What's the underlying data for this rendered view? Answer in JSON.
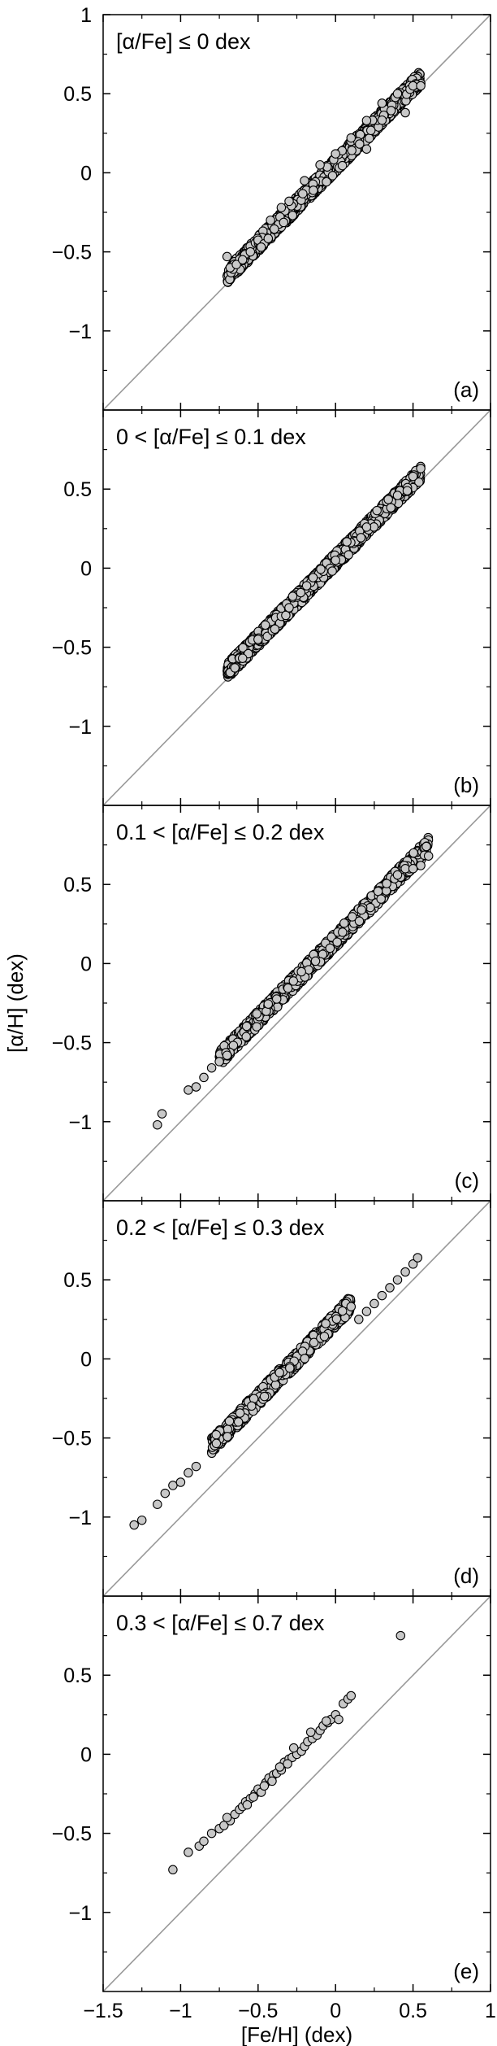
{
  "chart_data": {
    "type": "scatter",
    "xlabel": "[Fe/H] (dex)",
    "ylabel": "[α/H] (dex)",
    "xlim": [
      -1.5,
      1.0
    ],
    "ylim": [
      -1.5,
      1.0
    ],
    "x_ticks": [
      -1.5,
      -1,
      -0.5,
      0,
      0.5,
      1
    ],
    "x_tick_labels": [
      "−1.5",
      "−1",
      "−0.5",
      "0",
      "0.5",
      "1"
    ],
    "y_ticks": [
      -1,
      -0.5,
      0,
      0.5,
      1
    ],
    "y_tick_labels": [
      "−1",
      "−0.5",
      "0",
      "0.5",
      "1"
    ],
    "reference_line": "y = x",
    "marker": "circle",
    "marker_fill": "#c8c8c8",
    "marker_edge": "#000000",
    "line_color": "#999999",
    "panels": [
      {
        "title": "[α/Fe] ≤ 0 dex",
        "label": "(a)",
        "show_top_tick": true,
        "band": {
          "x_range": [
            -0.7,
            0.55
          ],
          "offset_range": [
            0.0,
            0.1
          ],
          "density": "very high"
        },
        "points": [
          [
            -0.7,
            -0.53
          ],
          [
            -0.68,
            -0.6
          ],
          [
            -0.64,
            -0.58
          ],
          [
            -0.6,
            -0.55
          ],
          [
            -0.55,
            -0.5
          ],
          [
            -0.48,
            -0.47
          ],
          [
            -0.42,
            -0.3
          ],
          [
            -0.35,
            -0.22
          ],
          [
            -0.3,
            -0.18
          ],
          [
            -0.2,
            -0.05
          ],
          [
            -0.1,
            0.05
          ],
          [
            0.0,
            0.12
          ],
          [
            0.1,
            0.22
          ],
          [
            0.2,
            0.33
          ],
          [
            0.3,
            0.44
          ],
          [
            0.4,
            0.5
          ],
          [
            0.5,
            0.55
          ],
          [
            0.55,
            0.55
          ],
          [
            0.45,
            0.38
          ],
          [
            0.2,
            0.15
          ]
        ]
      },
      {
        "title": "0 < [α/Fe] ≤ 0.1 dex",
        "label": "(b)",
        "show_top_tick": false,
        "band": {
          "x_range": [
            -0.7,
            0.55
          ],
          "offset_range": [
            0.0,
            0.1
          ],
          "density": "very high"
        },
        "points": [
          [
            -0.68,
            -0.66
          ],
          [
            -0.65,
            -0.63
          ],
          [
            -0.6,
            -0.57
          ],
          [
            -0.5,
            -0.45
          ],
          [
            -0.3,
            -0.25
          ],
          [
            0.0,
            0.05
          ],
          [
            0.2,
            0.26
          ],
          [
            0.4,
            0.46
          ],
          [
            0.5,
            0.58
          ],
          [
            0.55,
            0.63
          ]
        ]
      },
      {
        "title": "0.1 < [α/Fe] ≤ 0.2 dex",
        "label": "(c)",
        "show_top_tick": false,
        "band": {
          "x_range": [
            -0.75,
            0.6
          ],
          "offset_range": [
            0.1,
            0.2
          ],
          "density": "high"
        },
        "points": [
          [
            -1.15,
            -1.02
          ],
          [
            -1.12,
            -0.95
          ],
          [
            -0.95,
            -0.8
          ],
          [
            -0.9,
            -0.78
          ],
          [
            -0.85,
            -0.72
          ],
          [
            -0.8,
            -0.66
          ],
          [
            -0.75,
            -0.62
          ],
          [
            -0.7,
            -0.58
          ],
          [
            0.4,
            0.56
          ],
          [
            0.45,
            0.6
          ],
          [
            0.5,
            0.6
          ],
          [
            0.55,
            0.62
          ],
          [
            0.6,
            0.68
          ]
        ]
      },
      {
        "title": "0.2 < [α/Fe] ≤ 0.3 dex",
        "label": "(d)",
        "show_top_tick": false,
        "band": {
          "x_range": [
            -0.8,
            0.1
          ],
          "offset_range": [
            0.2,
            0.3
          ],
          "density": "medium"
        },
        "points": [
          [
            -1.3,
            -1.05
          ],
          [
            -1.25,
            -1.02
          ],
          [
            -1.15,
            -0.92
          ],
          [
            -1.1,
            -0.85
          ],
          [
            -1.05,
            -0.8
          ],
          [
            -1.0,
            -0.78
          ],
          [
            -0.95,
            -0.72
          ],
          [
            -0.9,
            -0.68
          ],
          [
            0.1,
            0.33
          ],
          [
            0.15,
            0.25
          ],
          [
            0.2,
            0.3
          ],
          [
            0.25,
            0.35
          ],
          [
            0.3,
            0.4
          ],
          [
            0.35,
            0.45
          ],
          [
            0.4,
            0.5
          ],
          [
            0.45,
            0.55
          ],
          [
            0.5,
            0.6
          ],
          [
            0.53,
            0.64
          ]
        ]
      },
      {
        "title": "0.3 < [α/Fe] ≤ 0.7 dex",
        "label": "(e)",
        "show_top_tick": false,
        "points": [
          [
            -1.05,
            -0.73
          ],
          [
            -0.95,
            -0.62
          ],
          [
            -0.88,
            -0.58
          ],
          [
            -0.85,
            -0.55
          ],
          [
            -0.8,
            -0.5
          ],
          [
            -0.75,
            -0.47
          ],
          [
            -0.72,
            -0.45
          ],
          [
            -0.68,
            -0.42
          ],
          [
            -0.65,
            -0.38
          ],
          [
            -0.62,
            -0.35
          ],
          [
            -0.6,
            -0.33
          ],
          [
            -0.58,
            -0.3
          ],
          [
            -0.55,
            -0.28
          ],
          [
            -0.52,
            -0.25
          ],
          [
            -0.5,
            -0.22
          ],
          [
            -0.48,
            -0.24
          ],
          [
            -0.45,
            -0.18
          ],
          [
            -0.43,
            -0.15
          ],
          [
            -0.4,
            -0.13
          ],
          [
            -0.38,
            -0.12
          ],
          [
            -0.35,
            -0.1
          ],
          [
            -0.33,
            -0.05
          ],
          [
            -0.3,
            -0.03
          ],
          [
            -0.28,
            -0.02
          ],
          [
            -0.25,
            0.0
          ],
          [
            -0.22,
            0.02
          ],
          [
            -0.2,
            0.05
          ],
          [
            -0.18,
            0.08
          ],
          [
            -0.15,
            0.1
          ],
          [
            -0.12,
            0.12
          ],
          [
            -0.1,
            0.15
          ],
          [
            -0.08,
            0.18
          ],
          [
            -0.05,
            0.2
          ],
          [
            -0.03,
            0.22
          ],
          [
            0.0,
            0.25
          ],
          [
            0.02,
            0.22
          ],
          [
            0.05,
            0.32
          ],
          [
            0.08,
            0.35
          ],
          [
            0.1,
            0.37
          ],
          [
            0.42,
            0.75
          ],
          [
            -0.57,
            -0.32
          ],
          [
            -0.46,
            -0.2
          ],
          [
            -0.36,
            -0.08
          ],
          [
            -0.27,
            0.04
          ],
          [
            -0.16,
            0.14
          ],
          [
            -0.06,
            0.21
          ],
          [
            -0.7,
            -0.4
          ],
          [
            -0.53,
            -0.27
          ],
          [
            -0.41,
            -0.17
          ],
          [
            -0.31,
            -0.06
          ]
        ]
      }
    ]
  }
}
